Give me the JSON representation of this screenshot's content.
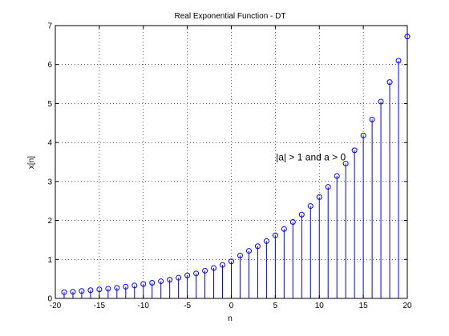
{
  "chart_data": {
    "type": "stem",
    "title": "Real Exponential Function - DT",
    "xlabel": "n",
    "ylabel": "x[n]",
    "xlim": [
      -20,
      20
    ],
    "ylim": [
      0,
      7
    ],
    "xticks": [
      -20,
      -15,
      -10,
      -5,
      0,
      5,
      10,
      15,
      20
    ],
    "yticks": [
      0,
      1,
      2,
      3,
      4,
      5,
      6,
      7
    ],
    "grid": true,
    "annotation": "|a| > 1 and a > 0",
    "annotation_position": [
      13,
      3.62
    ],
    "series": [
      {
        "name": "x[n]",
        "color": "#0000ff",
        "n": [
          -19,
          -18,
          -17,
          -16,
          -15,
          -14,
          -13,
          -12,
          -11,
          -10,
          -9,
          -8,
          -7,
          -6,
          -5,
          -4,
          -3,
          -2,
          -1,
          0,
          1,
          2,
          3,
          4,
          5,
          6,
          7,
          8,
          9,
          10,
          11,
          12,
          13,
          14,
          15,
          16,
          17,
          18,
          19,
          20
        ],
        "values": [
          0.16,
          0.17,
          0.19,
          0.21,
          0.23,
          0.25,
          0.27,
          0.3,
          0.33,
          0.37,
          0.4,
          0.44,
          0.48,
          0.53,
          0.59,
          0.64,
          0.71,
          0.78,
          0.86,
          0.95,
          1.1,
          1.22,
          1.34,
          1.47,
          1.62,
          1.78,
          1.96,
          2.15,
          2.37,
          2.6,
          2.86,
          3.14,
          3.46,
          3.8,
          4.18,
          4.59,
          5.05,
          5.55,
          6.1,
          6.72
        ]
      }
    ]
  }
}
